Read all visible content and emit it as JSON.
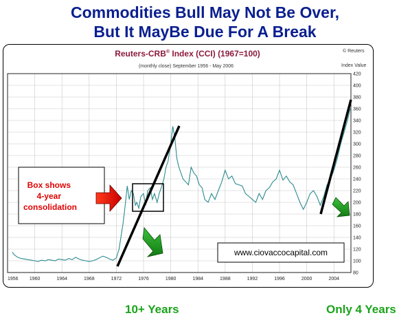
{
  "headline": {
    "line1": "Commodities Bull May Not Be Over,",
    "line2": "But It MayBe Due For A Break"
  },
  "chart_data": {
    "type": "line",
    "title_main": "Reuters-CRB",
    "title_sup": "®",
    "title_rest": " Index (CCI) (1967=100)",
    "subtitle": "(monthly close) September 1956 - May 2006",
    "copyright": "© Reuters",
    "ylabel": "Index Value",
    "xlim": [
      1956,
      2006.5
    ],
    "ylim": [
      80,
      420
    ],
    "x_ticks": [
      "1956",
      "1960",
      "1964",
      "1968",
      "1972",
      "1976",
      "1980",
      "1984",
      "1988",
      "1992",
      "1996",
      "2000",
      "2004"
    ],
    "y_ticks": [
      80,
      100,
      120,
      140,
      160,
      180,
      200,
      220,
      240,
      260,
      280,
      300,
      320,
      340,
      360,
      380,
      400,
      420
    ],
    "grid": true,
    "color": "#2b8a8f",
    "series": [
      {
        "x": [
          1956.7,
          1957.0,
          1957.5,
          1958.0,
          1958.5,
          1959.0,
          1959.5,
          1960.0,
          1960.5,
          1961.0,
          1961.5,
          1962.0,
          1962.5,
          1963.0,
          1963.5,
          1964.0,
          1964.5,
          1965.0,
          1965.5,
          1966.0,
          1966.5,
          1967.0,
          1967.5,
          1968.0,
          1968.5,
          1969.0,
          1969.5,
          1970.0,
          1970.5,
          1971.0,
          1971.5,
          1972.0,
          1972.4,
          1972.8,
          1973.0,
          1973.3,
          1973.6,
          1973.9,
          1974.2,
          1974.5,
          1974.8,
          1975.0,
          1975.3,
          1975.6,
          1976.0,
          1976.3,
          1976.6,
          1977.0,
          1977.3,
          1977.6,
          1978.0,
          1978.3,
          1978.6,
          1979.0,
          1979.3,
          1979.6,
          1980.0,
          1980.3,
          1980.6,
          1980.9,
          1981.2,
          1981.5,
          1981.8,
          1982.2,
          1982.6,
          1983.0,
          1983.4,
          1983.8,
          1984.2,
          1984.6,
          1985.0,
          1985.5,
          1986.0,
          1986.5,
          1987.0,
          1987.5,
          1988.0,
          1988.5,
          1989.0,
          1989.5,
          1990.0,
          1990.5,
          1991.0,
          1991.5,
          1992.0,
          1992.5,
          1993.0,
          1993.5,
          1994.0,
          1994.5,
          1995.0,
          1995.5,
          1996.0,
          1996.5,
          1997.0,
          1997.5,
          1998.0,
          1998.5,
          1999.0,
          1999.5,
          2000.0,
          2000.5,
          2001.0,
          2001.5,
          2002.0,
          2002.5,
          2003.0,
          2003.5,
          2004.0,
          2004.5,
          2005.0,
          2005.5,
          2006.0,
          2006.4
        ],
        "y": [
          115,
          110,
          106,
          104,
          103,
          102,
          101,
          100,
          99,
          101,
          100,
          102,
          101,
          100,
          103,
          102,
          101,
          104,
          102,
          106,
          103,
          101,
          100,
          99,
          100,
          102,
          105,
          108,
          106,
          103,
          101,
          105,
          120,
          150,
          165,
          195,
          228,
          205,
          220,
          215,
          195,
          200,
          190,
          210,
          215,
          195,
          220,
          225,
          205,
          215,
          200,
          215,
          225,
          240,
          260,
          270,
          300,
          330,
          310,
          275,
          260,
          250,
          240,
          235,
          230,
          260,
          250,
          245,
          230,
          225,
          205,
          200,
          215,
          205,
          220,
          235,
          255,
          240,
          245,
          232,
          230,
          228,
          215,
          210,
          205,
          200,
          215,
          205,
          220,
          225,
          235,
          240,
          255,
          238,
          245,
          235,
          230,
          215,
          200,
          188,
          200,
          215,
          220,
          210,
          195,
          210,
          230,
          240,
          255,
          275,
          300,
          320,
          340,
          360
        ]
      }
    ]
  },
  "annotations": {
    "callout_lines": [
      "Box shows",
      "4-year",
      "consolidation"
    ],
    "website": "www.ciovaccocapital.com"
  },
  "bottom_notes": {
    "left": "10+ Years",
    "right": "Only 4 Years"
  }
}
